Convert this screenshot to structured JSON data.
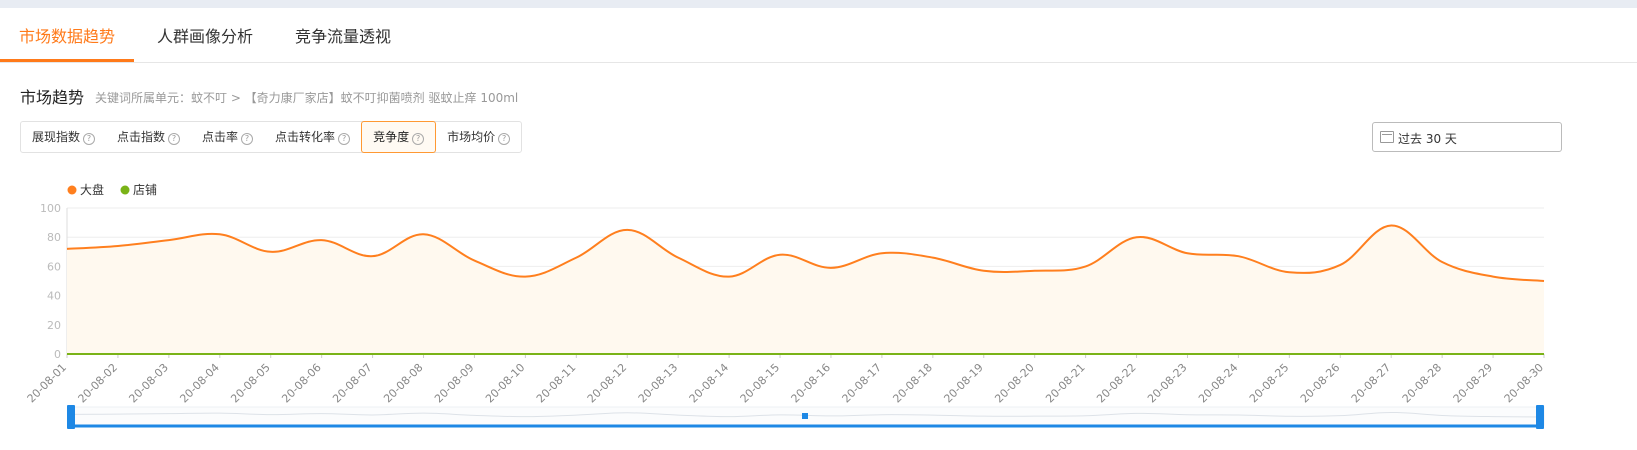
{
  "tabs": [
    {
      "label": "市场数据趋势",
      "active": true
    },
    {
      "label": "人群画像分析",
      "active": false
    },
    {
      "label": "竞争流量透视",
      "active": false
    }
  ],
  "section": {
    "title": "市场趋势",
    "breadcrumb": "关键词所属单元：蚊不叮 > 【奇力康厂家店】蚊不叮抑菌喷剂 驱蚊止痒 100ml"
  },
  "metrics": [
    {
      "label": "展现指数",
      "help": "?",
      "active": false
    },
    {
      "label": "点击指数",
      "help": "?",
      "active": false
    },
    {
      "label": "点击率",
      "help": "?",
      "active": false
    },
    {
      "label": "点击转化率",
      "help": "?",
      "active": false
    },
    {
      "label": "竞争度",
      "help": "?",
      "active": true
    },
    {
      "label": "市场均价",
      "help": "?",
      "active": false
    }
  ],
  "date_picker": {
    "value": "过去 30 天",
    "icon": "calendar-icon"
  },
  "colors": {
    "accent": "#ff7a1a",
    "series1": "#ff7f1e",
    "series2": "#7ab317",
    "slider": "#1e88e5"
  },
  "chart_data": {
    "type": "line",
    "title": "",
    "xlabel": "",
    "ylabel": "",
    "ylim": [
      0,
      100
    ],
    "yticks": [
      0,
      20,
      40,
      60,
      80,
      100
    ],
    "grid": true,
    "legend_position": "top-left",
    "categories": [
      "20-08-01",
      "20-08-02",
      "20-08-03",
      "20-08-04",
      "20-08-05",
      "20-08-06",
      "20-08-07",
      "20-08-08",
      "20-08-09",
      "20-08-10",
      "20-08-11",
      "20-08-12",
      "20-08-13",
      "20-08-14",
      "20-08-15",
      "20-08-16",
      "20-08-17",
      "20-08-18",
      "20-08-19",
      "20-08-20",
      "20-08-21",
      "20-08-22",
      "20-08-23",
      "20-08-24",
      "20-08-25",
      "20-08-26",
      "20-08-27",
      "20-08-28",
      "20-08-29",
      "20-08-30"
    ],
    "series": [
      {
        "name": "大盘",
        "color": "#ff7f1e",
        "values": [
          72,
          74,
          78,
          82,
          70,
          78,
          67,
          82,
          64,
          53,
          66,
          85,
          66,
          53,
          68,
          59,
          69,
          66,
          57,
          57,
          60,
          80,
          69,
          67,
          56,
          61,
          88,
          63,
          53,
          50
        ]
      },
      {
        "name": "店铺",
        "color": "#7ab317",
        "values": [
          0,
          0,
          0,
          0,
          0,
          0,
          0,
          0,
          0,
          0,
          0,
          0,
          0,
          0,
          0,
          0,
          0,
          0,
          0,
          0,
          0,
          0,
          0,
          0,
          0,
          0,
          0,
          0,
          0,
          0
        ]
      }
    ]
  }
}
